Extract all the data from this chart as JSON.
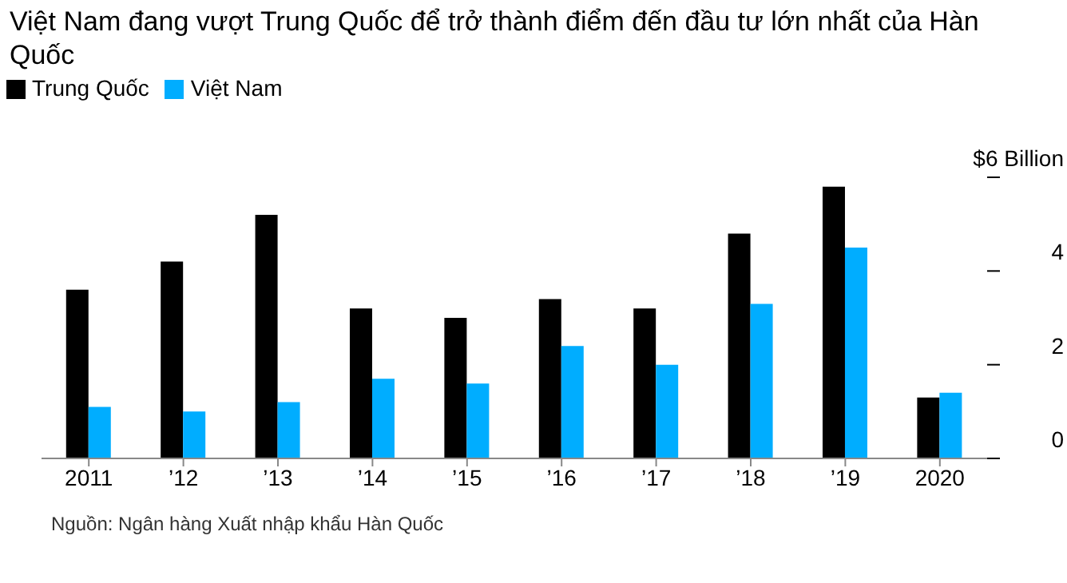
{
  "chart_data": {
    "type": "bar",
    "title": "Việt Nam đang vượt Trung Quốc để trở thành điểm đến đầu tư lớn nhất của Hàn Quốc",
    "categories": [
      "2011",
      "’12",
      "’13",
      "’14",
      "’15",
      "’16",
      "’17",
      "’18",
      "’19",
      "2020"
    ],
    "series": [
      {
        "name": "Trung Quốc",
        "color": "#000000",
        "values": [
          3.6,
          4.2,
          5.2,
          3.2,
          3.0,
          3.4,
          3.2,
          4.8,
          5.8,
          1.3
        ]
      },
      {
        "name": "Việt Nam",
        "color": "#00adff",
        "values": [
          1.1,
          1.0,
          1.2,
          1.7,
          1.6,
          2.4,
          2.0,
          3.3,
          4.5,
          1.4
        ]
      }
    ],
    "ylim": [
      0,
      6
    ],
    "yticks": [
      0,
      2,
      4,
      {
        "value": 6,
        "label": "$6 Billion"
      }
    ],
    "legend": "top left",
    "annotations": [
      "Nguồn: Ngân hàng Xuất nhập khẩu Hàn Quốc"
    ]
  }
}
